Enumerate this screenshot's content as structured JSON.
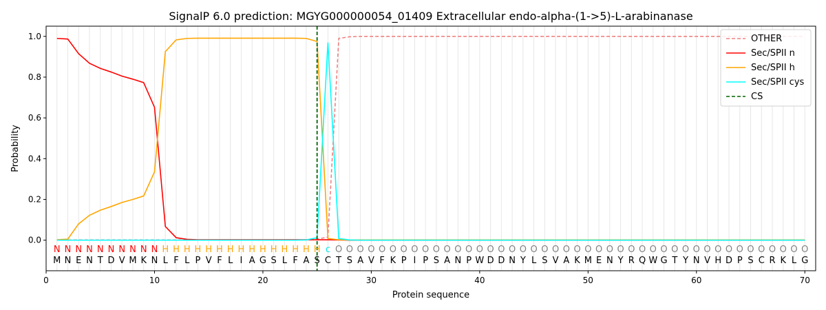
{
  "chart_data": {
    "type": "line",
    "title": "SignalP 6.0 prediction: MGYG000000054_01409 Extracellular endo-alpha-(1->5)-L-arabinanase",
    "xlabel": "Protein sequence",
    "ylabel": "Probability",
    "xlim": [
      0,
      71
    ],
    "ylim": [
      -0.15,
      1.05
    ],
    "x_ticks": [
      0,
      10,
      20,
      30,
      40,
      50,
      60,
      70
    ],
    "y_ticks": [
      0.0,
      0.2,
      0.4,
      0.6,
      0.8,
      1.0
    ],
    "x_tick_labels": [
      "0",
      "10",
      "20",
      "30",
      "40",
      "50",
      "60",
      "70"
    ],
    "y_tick_labels": [
      "0.0",
      "0.2",
      "0.4",
      "0.6",
      "0.8",
      "1.0"
    ],
    "grid": "vertical lines at each residue",
    "legend_position": "top-right",
    "sequence": [
      "M",
      "N",
      "E",
      "N",
      "T",
      "D",
      "V",
      "M",
      "K",
      "N",
      "L",
      "F",
      "L",
      "P",
      "V",
      "F",
      "L",
      "I",
      "A",
      "G",
      "S",
      "L",
      "F",
      "A",
      "S",
      "C",
      "T",
      "S",
      "A",
      "V",
      "F",
      "K",
      "P",
      "I",
      "P",
      "S",
      "A",
      "N",
      "P",
      "W",
      "D",
      "D",
      "N",
      "Y",
      "L",
      "S",
      "V",
      "A",
      "K",
      "M",
      "E",
      "N",
      "Y",
      "R",
      "Q",
      "W",
      "G",
      "T",
      "Y",
      "N",
      "V",
      "H",
      "D",
      "P",
      "S",
      "C",
      "R",
      "K",
      "L",
      "G"
    ],
    "region_labels": [
      "N",
      "N",
      "N",
      "N",
      "N",
      "N",
      "N",
      "N",
      "N",
      "N",
      "H",
      "H",
      "H",
      "H",
      "H",
      "H",
      "H",
      "H",
      "H",
      "H",
      "H",
      "H",
      "H",
      "H",
      "H",
      "C",
      "O",
      "O",
      "O",
      "O",
      "O",
      "O",
      "O",
      "O",
      "O",
      "O",
      "O",
      "O",
      "O",
      "O",
      "O",
      "O",
      "O",
      "O",
      "O",
      "O",
      "O",
      "O",
      "O",
      "O",
      "O",
      "O",
      "O",
      "O",
      "O",
      "O",
      "O",
      "O",
      "O",
      "O",
      "O",
      "O",
      "O",
      "O",
      "O",
      "O",
      "O",
      "O",
      "O",
      "O"
    ],
    "region_colors": {
      "N": "#ff0000",
      "H": "#ffa500",
      "C": "#00e5ee",
      "O": "#808080"
    },
    "series": [
      {
        "name": "OTHER",
        "color": "#f08080",
        "style": "dashed",
        "values": [
          0.001,
          0.001,
          0.001,
          0.001,
          0.001,
          0.001,
          0.001,
          0.001,
          0.001,
          0.001,
          0.001,
          0.001,
          0.001,
          0.001,
          0.001,
          0.001,
          0.001,
          0.001,
          0.001,
          0.001,
          0.001,
          0.001,
          0.001,
          0.001,
          0.005,
          0.015,
          0.99,
          0.998,
          1,
          1,
          1,
          1,
          1,
          1,
          1,
          1,
          1,
          1,
          1,
          1,
          1,
          1,
          1,
          1,
          1,
          1,
          1,
          1,
          1,
          1,
          1,
          1,
          1,
          1,
          1,
          1,
          1,
          1,
          1,
          1,
          1,
          1,
          1,
          1,
          1,
          1,
          1,
          1,
          1,
          1
        ]
      },
      {
        "name": "Sec/SPII n",
        "color": "#ff0000",
        "style": "solid",
        "values": [
          0.99,
          0.987,
          0.915,
          0.868,
          0.843,
          0.825,
          0.805,
          0.79,
          0.773,
          0.652,
          0.067,
          0.012,
          0.004,
          0.002,
          0.002,
          0.002,
          0.002,
          0.002,
          0.002,
          0.002,
          0.002,
          0.002,
          0.002,
          0.002,
          0.002,
          0.002,
          0.001,
          0,
          0,
          0,
          0,
          0,
          0,
          0,
          0,
          0,
          0,
          0,
          0,
          0,
          0,
          0,
          0,
          0,
          0,
          0,
          0,
          0,
          0,
          0,
          0,
          0,
          0,
          0,
          0,
          0,
          0,
          0,
          0,
          0,
          0,
          0,
          0,
          0,
          0,
          0,
          0,
          0,
          0,
          0
        ]
      },
      {
        "name": "Sec/SPII h",
        "color": "#ffa500",
        "style": "solid",
        "values": [
          0.002,
          0.005,
          0.08,
          0.122,
          0.147,
          0.165,
          0.185,
          0.2,
          0.217,
          0.335,
          0.925,
          0.983,
          0.99,
          0.991,
          0.991,
          0.991,
          0.991,
          0.991,
          0.991,
          0.991,
          0.991,
          0.991,
          0.991,
          0.99,
          0.975,
          0.008,
          0.002,
          0.001,
          0.001,
          0.001,
          0.001,
          0.001,
          0.001,
          0.001,
          0.001,
          0.001,
          0.001,
          0.001,
          0.001,
          0.001,
          0.001,
          0.001,
          0.001,
          0.001,
          0.001,
          0.001,
          0.001,
          0.001,
          0.001,
          0.001,
          0.001,
          0.001,
          0.001,
          0.001,
          0.001,
          0.001,
          0.001,
          0.001,
          0.001,
          0.001,
          0.001,
          0.001,
          0.001,
          0.001,
          0.001,
          0.001,
          0.001,
          0.001,
          0.001,
          0.001
        ]
      },
      {
        "name": "Sec/SPII cys",
        "color": "#00ffff",
        "style": "solid",
        "values": [
          0,
          0,
          0,
          0,
          0,
          0,
          0,
          0,
          0,
          0,
          0,
          0,
          0,
          0,
          0,
          0,
          0,
          0,
          0,
          0,
          0,
          0,
          0,
          0.001,
          0.012,
          0.97,
          0.008,
          0.001,
          0,
          0,
          0,
          0,
          0,
          0,
          0,
          0,
          0,
          0,
          0,
          0,
          0,
          0,
          0,
          0,
          0,
          0,
          0,
          0,
          0,
          0,
          0,
          0,
          0,
          0,
          0,
          0,
          0,
          0,
          0,
          0,
          0,
          0,
          0,
          0,
          0,
          0,
          0,
          0,
          0,
          0
        ]
      }
    ],
    "cleavage_site": {
      "name": "CS",
      "x": 25,
      "color": "#006400",
      "style": "dashed"
    }
  }
}
